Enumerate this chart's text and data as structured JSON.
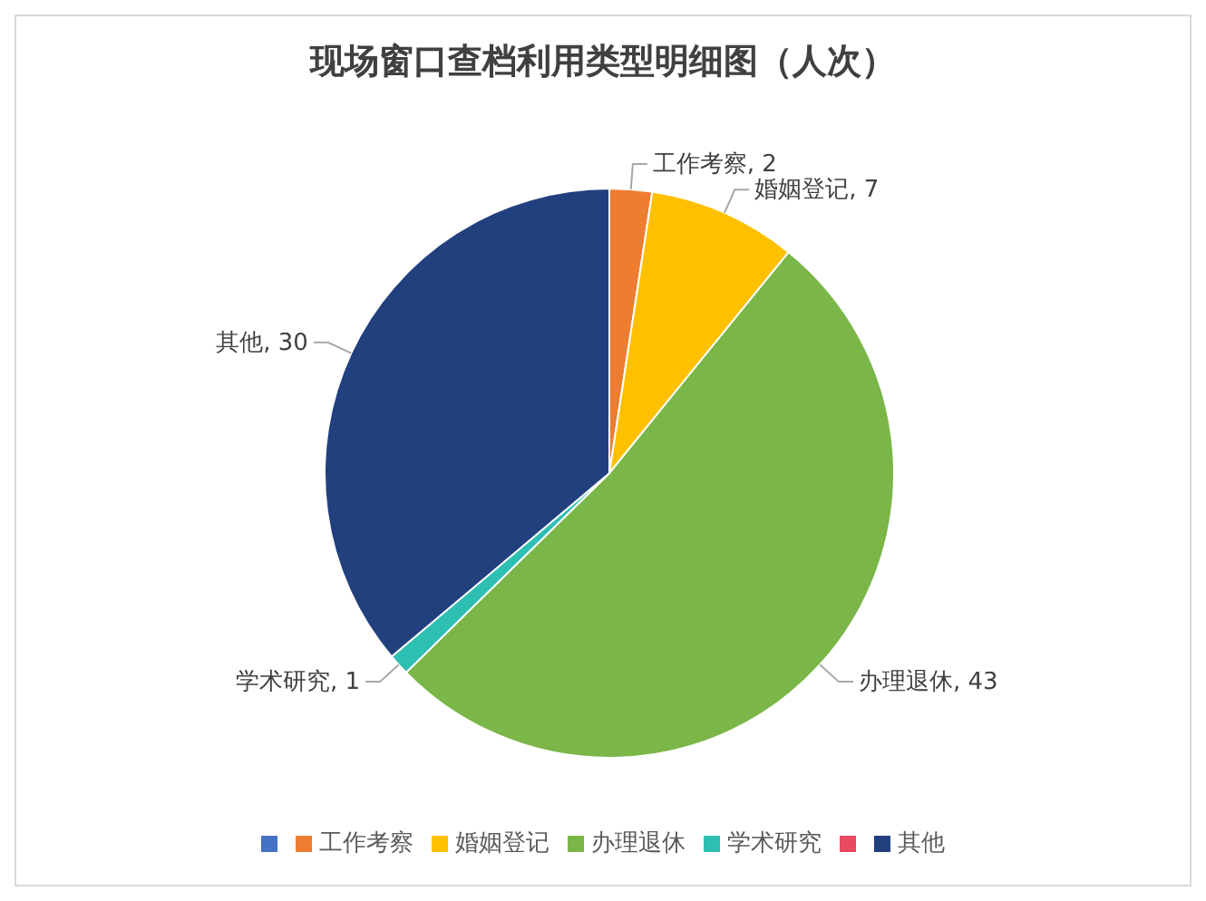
{
  "chart_data": {
    "type": "pie",
    "title": "现场窗口查档利用类型明细图（人次）",
    "categories": [
      null,
      "工作考察",
      "婚姻登记",
      "办理退休",
      "学术研究",
      null,
      "其他"
    ],
    "values": [
      0,
      2,
      7,
      43,
      1,
      0,
      30
    ],
    "value_labels": [
      null,
      "工作考察, 2",
      "婚姻登记, 7",
      "办理退休, 43",
      "学术研究, 1",
      null,
      "其他, 30"
    ],
    "colors": [
      "#4472c4",
      "#ed7d31",
      "#ffc000",
      "#7ab648",
      "#2ebfb3",
      "#e84a5f",
      "#22407e"
    ],
    "legend": "bottom"
  }
}
